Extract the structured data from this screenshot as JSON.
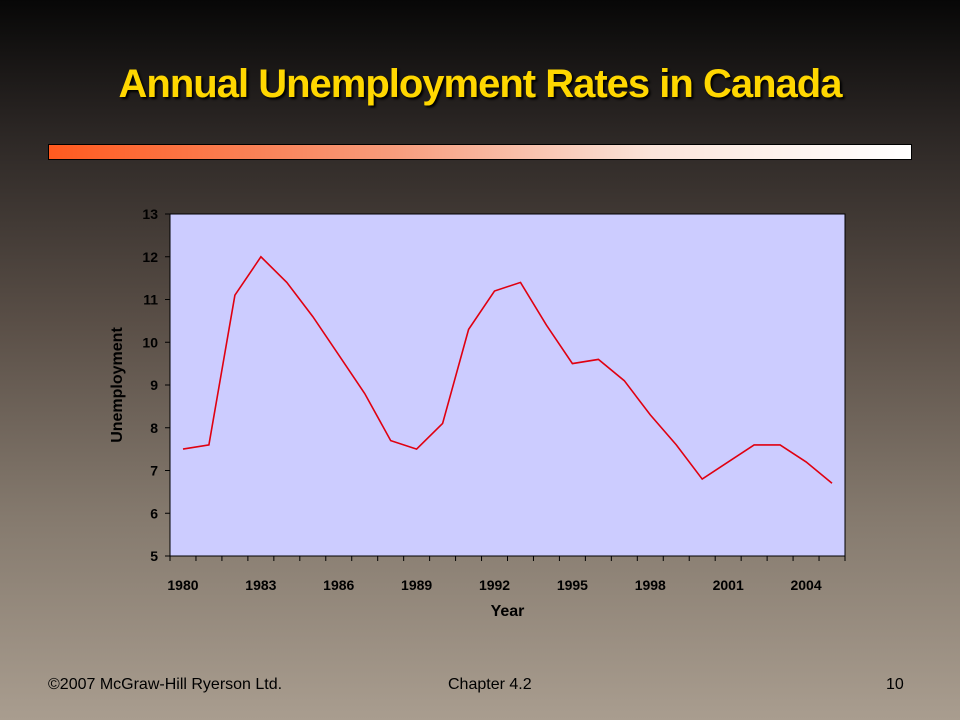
{
  "slide": {
    "title": "Annual Unemployment Rates in Canada",
    "footer_left": "©2007 McGraw-Hill Ryerson Ltd.",
    "footer_center": "Chapter 4.2",
    "footer_right": "10"
  },
  "colors": {
    "title": "#ffd700",
    "plot_background": "#ccccff",
    "line": "#e00010",
    "bar_start": "#ff5a1f"
  },
  "chart_data": {
    "type": "line",
    "xlabel": "Year",
    "ylabel": "Unemployment",
    "ylim": [
      5,
      13
    ],
    "yticks": [
      5,
      6,
      7,
      8,
      9,
      10,
      11,
      12,
      13
    ],
    "xlim": [
      1979.5,
      2005.5
    ],
    "xticks": [
      1980,
      1983,
      1986,
      1989,
      1992,
      1995,
      1998,
      2001,
      2004
    ],
    "grid": false,
    "legend": "none",
    "series": [
      {
        "x": [
          1980,
          1981,
          1982,
          1983,
          1984,
          1985,
          1986,
          1987,
          1988,
          1989,
          1990,
          1991,
          1992,
          1993,
          1994,
          1995,
          1996,
          1997,
          1998,
          1999,
          2000,
          2001,
          2002,
          2003,
          2004,
          2005
        ],
        "values": [
          7.5,
          7.6,
          11.1,
          12.0,
          11.4,
          10.6,
          9.7,
          8.8,
          7.7,
          7.5,
          8.1,
          10.3,
          11.2,
          11.4,
          10.4,
          9.5,
          9.6,
          9.1,
          8.3,
          7.6,
          6.8,
          7.2,
          7.6,
          7.6,
          7.2,
          6.7
        ]
      }
    ]
  }
}
